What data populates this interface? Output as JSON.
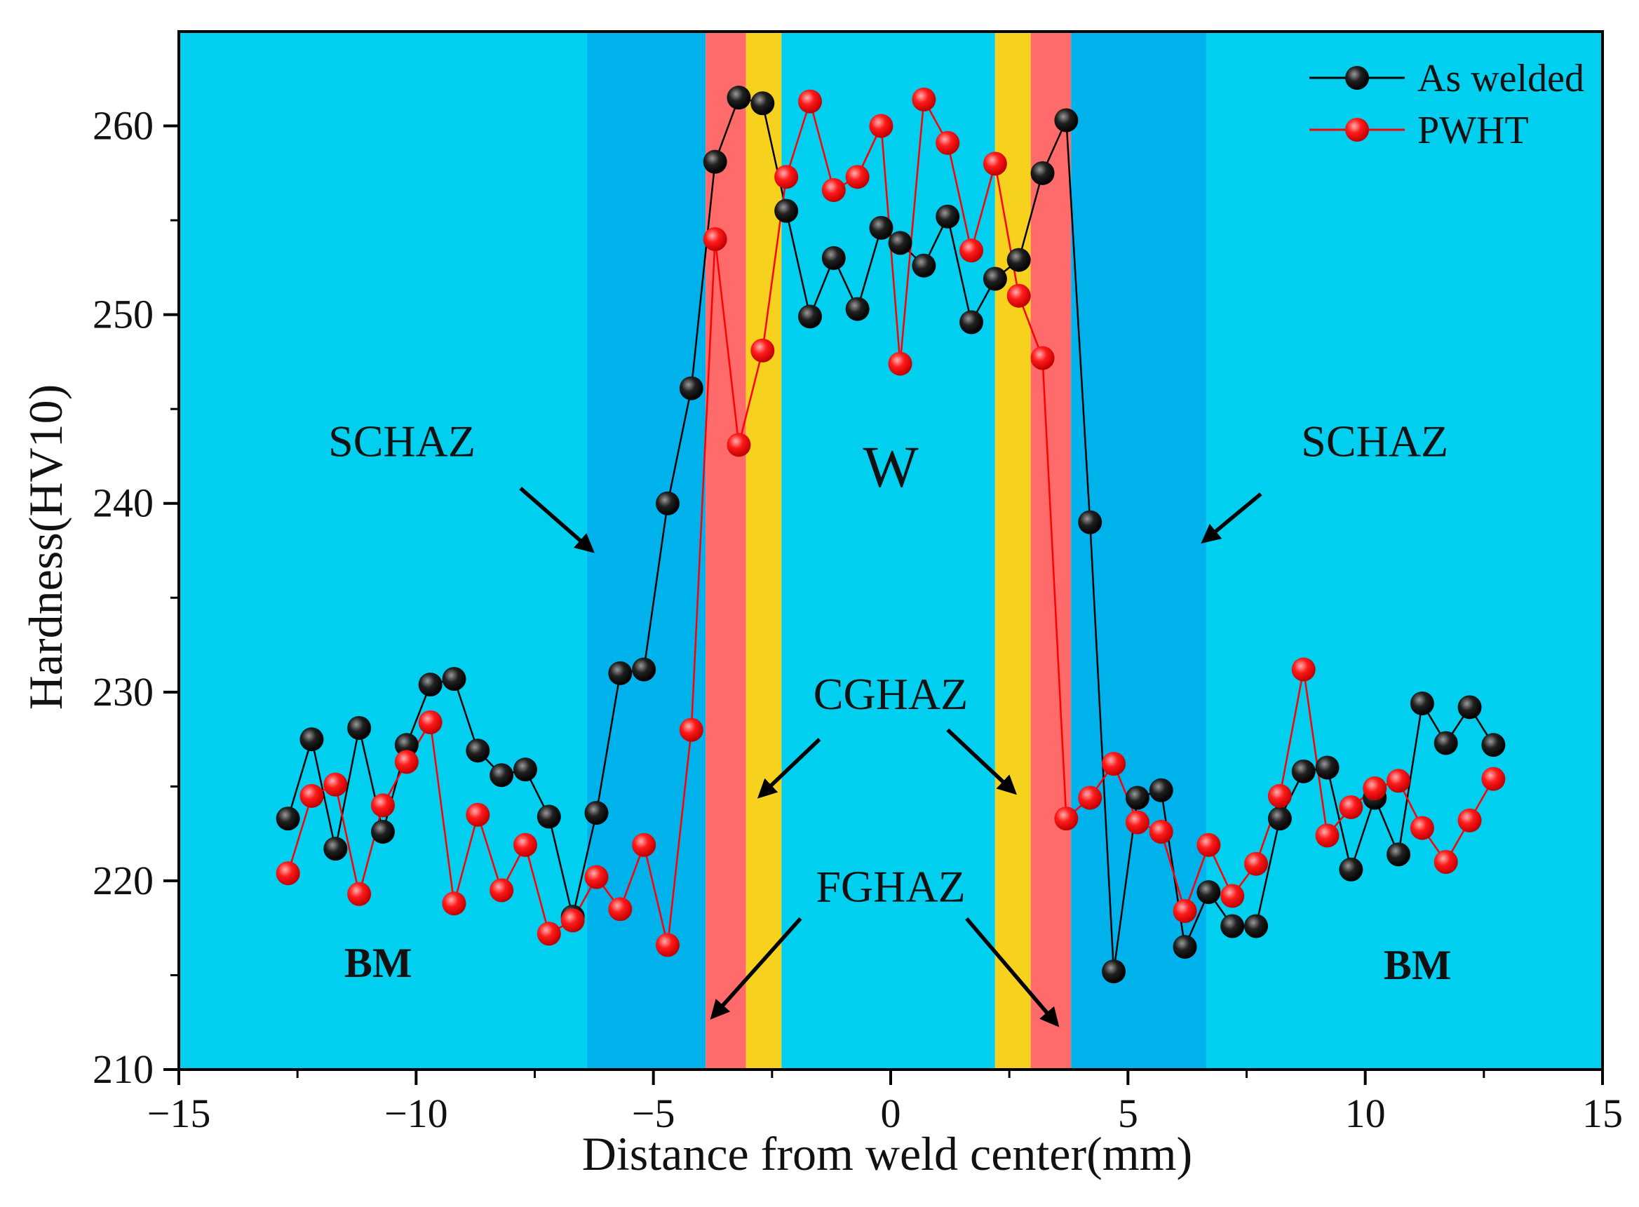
{
  "chart_data": {
    "type": "scatter",
    "title": "",
    "xlabel": "Distance from weld center(mm)",
    "ylabel": "Hardness(HV10)",
    "xlim": [
      -15,
      15
    ],
    "ylim": [
      210,
      265
    ],
    "xticks": [
      -15,
      -10,
      -5,
      0,
      5,
      10,
      15
    ],
    "xtick_labels": [
      "−15",
      "−10",
      "−5",
      "0",
      "5",
      "10",
      "15"
    ],
    "yticks": [
      210,
      220,
      230,
      240,
      250,
      260
    ],
    "ytick_labels": [
      "210",
      "220",
      "230",
      "240",
      "250",
      "260"
    ],
    "legend_position": "top-right",
    "zones": [
      {
        "name": "BM",
        "x0": -15,
        "x1": -6.4,
        "color": "#00CFEF"
      },
      {
        "name": "SCHAZ",
        "x0": -6.4,
        "x1": -3.9,
        "color": "#00B2EC"
      },
      {
        "name": "FGHAZ",
        "x0": -3.9,
        "x1": -3.05,
        "color": "#FF6A6A"
      },
      {
        "name": "CGHAZ",
        "x0": -3.05,
        "x1": -2.3,
        "color": "#F6D21F"
      },
      {
        "name": "W",
        "x0": -2.3,
        "x1": 2.2,
        "color": "#00CFEF"
      },
      {
        "name": "CGHAZ",
        "x0": 2.2,
        "x1": 2.95,
        "color": "#F6D21F"
      },
      {
        "name": "FGHAZ",
        "x0": 2.95,
        "x1": 3.8,
        "color": "#FF6A6A"
      },
      {
        "name": "SCHAZ",
        "x0": 3.8,
        "x1": 6.65,
        "color": "#00B2EC"
      },
      {
        "name": "BM",
        "x0": 6.65,
        "x1": 15,
        "color": "#00CFEF"
      }
    ],
    "annotations": [
      {
        "id": "schaz-left",
        "text": "SCHAZ",
        "x": -10.3,
        "y": 242.5,
        "style": "normal"
      },
      {
        "id": "schaz-right",
        "text": "SCHAZ",
        "x": 10.2,
        "y": 242.5,
        "style": "normal"
      },
      {
        "id": "w",
        "text": "W",
        "x": 0,
        "y": 240.9,
        "style": "large"
      },
      {
        "id": "cghaz",
        "text": "CGHAZ",
        "x": 0,
        "y": 229.1,
        "style": "normal"
      },
      {
        "id": "fghaz",
        "text": "FGHAZ",
        "x": 0,
        "y": 218.9,
        "style": "normal"
      },
      {
        "id": "bm-left",
        "text": "BM",
        "x": -10.8,
        "y": 214.9,
        "style": "bold"
      },
      {
        "id": "bm-right",
        "text": "BM",
        "x": 11.1,
        "y": 214.8,
        "style": "bold"
      }
    ],
    "arrows": [
      {
        "id": "schaz-left-arrow",
        "from": [
          -7.8,
          240.8
        ],
        "to": [
          -6.3,
          237.5
        ]
      },
      {
        "id": "schaz-right-arrow",
        "from": [
          7.8,
          240.5
        ],
        "to": [
          6.6,
          238.0
        ]
      },
      {
        "id": "cghaz-left-arrow",
        "from": [
          -1.5,
          227.5
        ],
        "to": [
          -2.75,
          224.5
        ]
      },
      {
        "id": "cghaz-right-arrow",
        "from": [
          1.2,
          228.0
        ],
        "to": [
          2.6,
          224.7
        ]
      },
      {
        "id": "fghaz-left-arrow",
        "from": [
          -1.9,
          218.0
        ],
        "to": [
          -3.75,
          212.8
        ]
      },
      {
        "id": "fghaz-right-arrow",
        "from": [
          1.6,
          218.0
        ],
        "to": [
          3.5,
          212.4
        ]
      }
    ],
    "series": [
      {
        "name": "As welded",
        "color": "#000000",
        "x": [
          -12.7,
          -12.2,
          -11.7,
          -11.2,
          -10.7,
          -10.2,
          -9.7,
          -9.2,
          -8.7,
          -8.2,
          -7.7,
          -7.2,
          -6.7,
          -6.2,
          -5.7,
          -5.2,
          -4.7,
          -4.2,
          -3.7,
          -3.2,
          -2.7,
          -2.2,
          -1.7,
          -1.2,
          -0.7,
          -0.2,
          0.2,
          0.7,
          1.2,
          1.7,
          2.2,
          2.7,
          3.2,
          3.7,
          4.2,
          4.7,
          5.2,
          5.7,
          6.2,
          6.7,
          7.2,
          7.7,
          8.2,
          8.7,
          9.2,
          9.7,
          10.2,
          10.7,
          11.2,
          11.7,
          12.2,
          12.7
        ],
        "y": [
          223.3,
          227.5,
          221.7,
          228.1,
          222.6,
          227.2,
          230.4,
          230.7,
          226.9,
          225.6,
          225.9,
          223.4,
          218.1,
          223.6,
          231.0,
          231.2,
          240.0,
          246.1,
          258.1,
          261.5,
          261.2,
          255.5,
          249.9,
          253.0,
          250.3,
          254.6,
          253.8,
          252.6,
          255.2,
          249.6,
          251.9,
          252.9,
          257.5,
          260.3,
          239.0,
          215.2,
          224.4,
          224.8,
          216.5,
          219.4,
          217.6,
          217.6,
          223.3,
          225.8,
          226.0,
          220.6,
          224.4,
          221.4,
          229.4,
          227.3,
          229.2,
          227.2
        ]
      },
      {
        "name": "PWHT",
        "color": "#FF0000",
        "x": [
          -12.7,
          -12.2,
          -11.7,
          -11.2,
          -10.7,
          -10.2,
          -9.7,
          -9.2,
          -8.7,
          -8.2,
          -7.7,
          -7.2,
          -6.7,
          -6.2,
          -5.7,
          -5.2,
          -4.7,
          -4.2,
          -3.7,
          -3.2,
          -2.7,
          -2.2,
          -1.7,
          -1.2,
          -0.7,
          -0.2,
          0.2,
          0.7,
          1.2,
          1.7,
          2.2,
          2.7,
          3.2,
          3.7,
          4.2,
          4.7,
          5.2,
          5.7,
          6.2,
          6.7,
          7.2,
          7.7,
          8.2,
          8.7,
          9.2,
          9.7,
          10.2,
          10.7,
          11.2,
          11.7,
          12.2,
          12.7
        ],
        "y": [
          220.4,
          224.5,
          225.1,
          219.3,
          224.0,
          226.3,
          228.4,
          218.8,
          223.5,
          219.5,
          221.9,
          217.2,
          217.9,
          220.2,
          218.5,
          221.9,
          216.6,
          228.0,
          254.0,
          243.1,
          248.1,
          257.3,
          261.3,
          256.6,
          257.3,
          260.0,
          247.4,
          261.4,
          259.1,
          253.4,
          258.0,
          251.0,
          247.7,
          223.3,
          224.4,
          226.2,
          223.1,
          222.6,
          218.4,
          221.9,
          219.2,
          220.9,
          224.5,
          231.2,
          222.4,
          223.9,
          224.9,
          225.3,
          222.8,
          221.0,
          223.2,
          225.4
        ]
      }
    ]
  }
}
